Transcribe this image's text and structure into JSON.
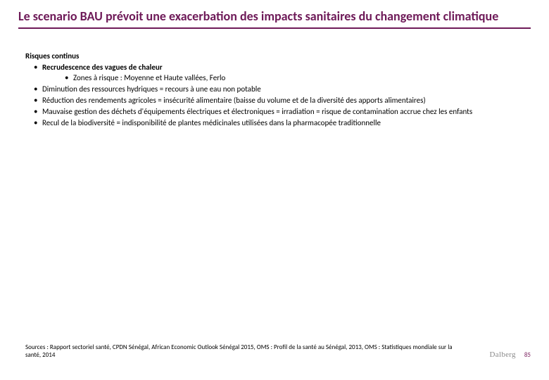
{
  "colors": {
    "accent": "#6e1a58",
    "rule": "#6e1a58",
    "text": "#000000",
    "logo_grey": "#8a8a8a"
  },
  "title": "Le scenario BAU prévoit une exacerbation des impacts sanitaires du changement climatique",
  "section_heading": "Risques continus",
  "bullets": [
    {
      "text": "Recrudescence des vagues de chaleur",
      "bold": true,
      "sub": [
        {
          "text": "Zones à risque : Moyenne et Haute vallées, Ferlo"
        }
      ]
    },
    {
      "text": "Diminution des ressources hydriques = recours à une eau non potable"
    },
    {
      "text": "Réduction des rendements agricoles = insécurité alimentaire (baisse du volume et de la diversité des apports alimentaires)"
    },
    {
      "text": "Mauvaise gestion des déchets d'équipements électriques et électroniques = irradiation = risque de contamination accrue chez les enfants"
    },
    {
      "text": "Recul de la biodiversité = indisponibilité de plantes médicinales utilisées dans la pharmacopée traditionnelle"
    }
  ],
  "sources": "Sources : Rapport sectoriel santé, CPDN Sénégal, African Economic Outlook Sénégal 2015, OMS : Profil de la santé au Sénégal, 2013, OMS : Statistiques mondiale sur la santé, 2014",
  "logo": "Dalberg",
  "page_number": "85"
}
